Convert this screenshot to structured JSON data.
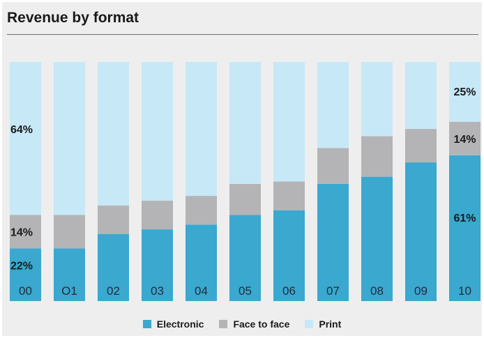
{
  "colors": {
    "electronic": "#3aa8cf",
    "face_to_face": "#b4b4b7",
    "print": "#c7e8f7"
  },
  "chart_data": {
    "type": "bar",
    "stacked": true,
    "title": "Revenue by format",
    "categories": [
      "00",
      "O1",
      "02",
      "03",
      "04",
      "05",
      "06",
      "07",
      "08",
      "09",
      "10"
    ],
    "ylim": [
      0,
      100
    ],
    "series": [
      {
        "name": "Electronic",
        "color": "#3aa8cf",
        "values": [
          22,
          22,
          28,
          30,
          32,
          36,
          38,
          49,
          52,
          58,
          61
        ]
      },
      {
        "name": "Face to face",
        "color": "#b4b4b7",
        "values": [
          14,
          14,
          12,
          12,
          12,
          13,
          12,
          15,
          17,
          14,
          14
        ]
      },
      {
        "name": "Print",
        "color": "#c7e8f7",
        "values": [
          64,
          64,
          60,
          58,
          56,
          51,
          50,
          36,
          31,
          28,
          25
        ]
      }
    ],
    "data_labels": [
      {
        "category_index": 0,
        "series_index": 0,
        "text": "22%"
      },
      {
        "category_index": 0,
        "series_index": 1,
        "text": "14%"
      },
      {
        "category_index": 0,
        "series_index": 2,
        "text": "64%"
      },
      {
        "category_index": 10,
        "series_index": 0,
        "text": "61%"
      },
      {
        "category_index": 10,
        "series_index": 1,
        "text": "14%"
      },
      {
        "category_index": 10,
        "series_index": 2,
        "text": "25%"
      }
    ],
    "legend": {
      "position": "bottom-center"
    },
    "grid": false
  }
}
